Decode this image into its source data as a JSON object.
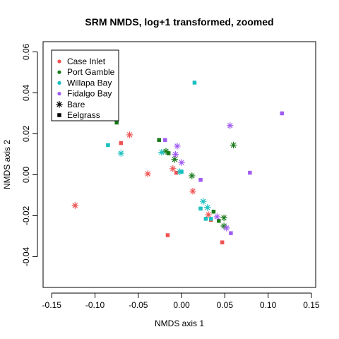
{
  "chart_data": {
    "type": "scatter",
    "title": "SRM NMDS, log+1 transformed, zoomed",
    "xlabel": "NMDS axis 1",
    "ylabel": "NMDS axis 2",
    "xlim": [
      -0.16,
      0.155
    ],
    "ylim": [
      -0.055,
      0.065
    ],
    "xticks": [
      -0.15,
      -0.1,
      -0.05,
      0.0,
      0.05,
      0.1,
      0.15
    ],
    "xtick_labels": [
      "-0.15",
      "-0.10",
      "-0.05",
      "0.00",
      "0.05",
      "0.10",
      "0.15"
    ],
    "yticks": [
      -0.04,
      -0.02,
      0.0,
      0.02,
      0.04,
      0.06
    ],
    "ytick_labels": [
      "-0.04",
      "-0.02",
      "0.00",
      "0.02",
      "0.04",
      "0.06"
    ],
    "legend": {
      "placement": "top-left",
      "sites": [
        {
          "name": "Case Inlet",
          "color": "#F05252"
        },
        {
          "name": "Port Gamble",
          "color": "#1A7A1A"
        },
        {
          "name": "Willapa Bay",
          "color": "#1BBFBF"
        },
        {
          "name": "Fidalgo Bay",
          "color": "#A05CF2"
        }
      ],
      "habitats": [
        {
          "name": "Bare",
          "symbol": "asterisk"
        },
        {
          "name": "Eelgrass",
          "symbol": "square"
        }
      ]
    },
    "colors": {
      "Case Inlet": "#F05252",
      "Port Gamble": "#1A7A1A",
      "Willapa Bay": "#1BBFBF",
      "Fidalgo Bay": "#A05CF2"
    },
    "points": [
      {
        "site": "Case Inlet",
        "habitat": "Bare",
        "x": -0.123,
        "y": -0.015
      },
      {
        "site": "Case Inlet",
        "habitat": "Bare",
        "x": -0.06,
        "y": 0.0195
      },
      {
        "site": "Case Inlet",
        "habitat": "Bare",
        "x": -0.039,
        "y": 0.0005
      },
      {
        "site": "Case Inlet",
        "habitat": "Bare",
        "x": -0.01,
        "y": 0.003
      },
      {
        "site": "Case Inlet",
        "habitat": "Bare",
        "x": 0.013,
        "y": -0.008
      },
      {
        "site": "Case Inlet",
        "habitat": "Bare",
        "x": 0.031,
        "y": -0.0195
      },
      {
        "site": "Case Inlet",
        "habitat": "Eelgrass",
        "x": -0.07,
        "y": 0.0155
      },
      {
        "site": "Case Inlet",
        "habitat": "Eelgrass",
        "x": -0.006,
        "y": 0.001
      },
      {
        "site": "Case Inlet",
        "habitat": "Eelgrass",
        "x": -0.016,
        "y": -0.0295
      },
      {
        "site": "Case Inlet",
        "habitat": "Eelgrass",
        "x": 0.047,
        "y": -0.033
      },
      {
        "site": "Case Inlet",
        "habitat": "Eelgrass",
        "x": 0.034,
        "y": -0.022
      },
      {
        "site": "Port Gamble",
        "habitat": "Bare",
        "x": -0.018,
        "y": 0.0115
      },
      {
        "site": "Port Gamble",
        "habitat": "Bare",
        "x": -0.008,
        "y": 0.0075
      },
      {
        "site": "Port Gamble",
        "habitat": "Bare",
        "x": 0.012,
        "y": -0.0005
      },
      {
        "site": "Port Gamble",
        "habitat": "Bare",
        "x": 0.049,
        "y": -0.021
      },
      {
        "site": "Port Gamble",
        "habitat": "Bare",
        "x": 0.049,
        "y": -0.025
      },
      {
        "site": "Port Gamble",
        "habitat": "Bare",
        "x": 0.06,
        "y": 0.0145
      },
      {
        "site": "Port Gamble",
        "habitat": "Eelgrass",
        "x": -0.075,
        "y": 0.0255
      },
      {
        "site": "Port Gamble",
        "habitat": "Eelgrass",
        "x": -0.026,
        "y": 0.017
      },
      {
        "site": "Port Gamble",
        "habitat": "Eelgrass",
        "x": -0.015,
        "y": 0.0105
      },
      {
        "site": "Port Gamble",
        "habitat": "Eelgrass",
        "x": 0.037,
        "y": -0.018
      },
      {
        "site": "Port Gamble",
        "habitat": "Eelgrass",
        "x": 0.043,
        "y": -0.0225
      },
      {
        "site": "Willapa Bay",
        "habitat": "Bare",
        "x": -0.07,
        "y": 0.0105
      },
      {
        "site": "Willapa Bay",
        "habitat": "Bare",
        "x": -0.023,
        "y": 0.011
      },
      {
        "site": "Willapa Bay",
        "habitat": "Bare",
        "x": -0.002,
        "y": 0.0015
      },
      {
        "site": "Willapa Bay",
        "habitat": "Bare",
        "x": 0.025,
        "y": -0.013
      },
      {
        "site": "Willapa Bay",
        "habitat": "Bare",
        "x": 0.03,
        "y": -0.016
      },
      {
        "site": "Willapa Bay",
        "habitat": "Eelgrass",
        "x": -0.085,
        "y": 0.0145
      },
      {
        "site": "Willapa Bay",
        "habitat": "Eelgrass",
        "x": 0.015,
        "y": 0.045
      },
      {
        "site": "Willapa Bay",
        "habitat": "Eelgrass",
        "x": 0.0,
        "y": 0.0015
      },
      {
        "site": "Willapa Bay",
        "habitat": "Eelgrass",
        "x": 0.022,
        "y": -0.0165
      },
      {
        "site": "Willapa Bay",
        "habitat": "Eelgrass",
        "x": 0.028,
        "y": -0.0215
      },
      {
        "site": "Willapa Bay",
        "habitat": "Eelgrass",
        "x": 0.034,
        "y": -0.0215
      },
      {
        "site": "Fidalgo Bay",
        "habitat": "Bare",
        "x": -0.005,
        "y": 0.014
      },
      {
        "site": "Fidalgo Bay",
        "habitat": "Bare",
        "x": -0.007,
        "y": 0.01
      },
      {
        "site": "Fidalgo Bay",
        "habitat": "Bare",
        "x": 0.0,
        "y": 0.006
      },
      {
        "site": "Fidalgo Bay",
        "habitat": "Bare",
        "x": 0.041,
        "y": -0.0205
      },
      {
        "site": "Fidalgo Bay",
        "habitat": "Bare",
        "x": 0.052,
        "y": -0.026
      },
      {
        "site": "Fidalgo Bay",
        "habitat": "Bare",
        "x": 0.056,
        "y": 0.024
      },
      {
        "site": "Fidalgo Bay",
        "habitat": "Eelgrass",
        "x": -0.019,
        "y": 0.017
      },
      {
        "site": "Fidalgo Bay",
        "habitat": "Eelgrass",
        "x": 0.022,
        "y": -0.0025
      },
      {
        "site": "Fidalgo Bay",
        "habitat": "Eelgrass",
        "x": 0.057,
        "y": -0.0285
      },
      {
        "site": "Fidalgo Bay",
        "habitat": "Eelgrass",
        "x": 0.079,
        "y": 0.001
      },
      {
        "site": "Fidalgo Bay",
        "habitat": "Eelgrass",
        "x": 0.116,
        "y": 0.03
      }
    ]
  }
}
